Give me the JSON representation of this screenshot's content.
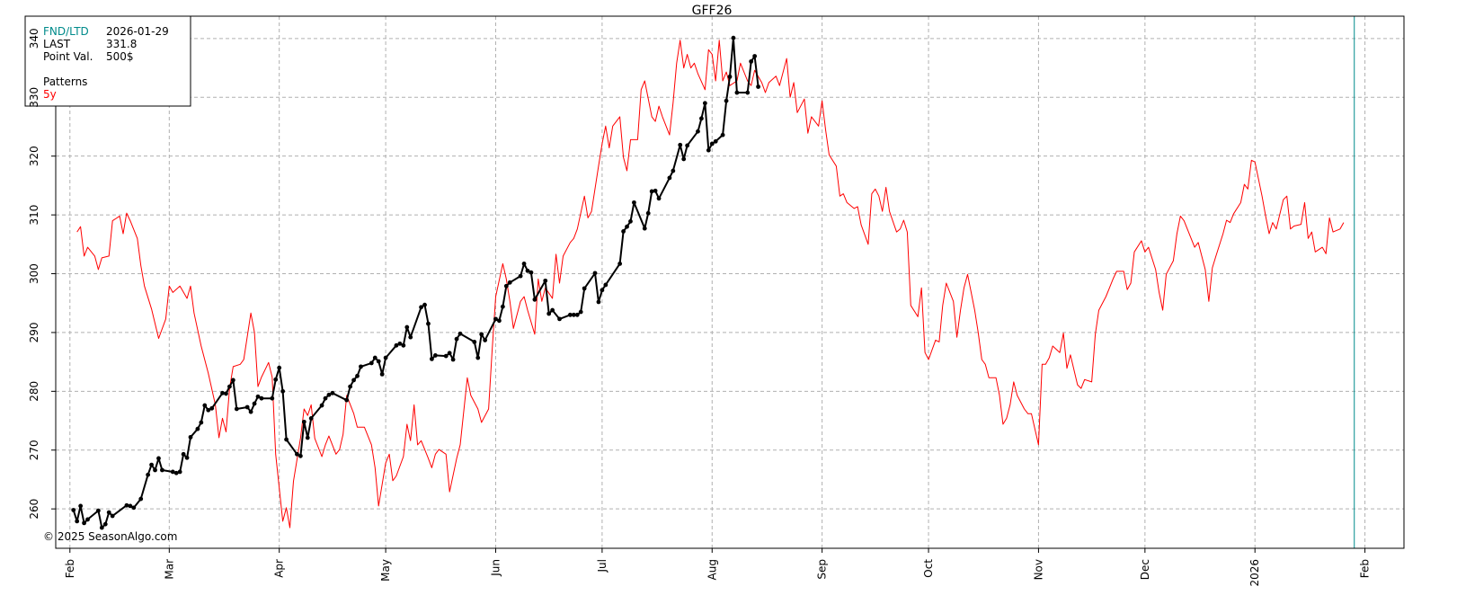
{
  "chart_data": {
    "type": "line",
    "title": "GFF26",
    "xlim": [
      "2025-01-28",
      "2026-02-12"
    ],
    "xticks": [
      {
        "value": "2025-02-01",
        "label": "Feb"
      },
      {
        "value": "2025-03-01",
        "label": "Mar"
      },
      {
        "value": "2025-04-01",
        "label": "Apr"
      },
      {
        "value": "2025-05-01",
        "label": "May"
      },
      {
        "value": "2025-06-01",
        "label": "Jun"
      },
      {
        "value": "2025-07-01",
        "label": "Jul"
      },
      {
        "value": "2025-08-01",
        "label": "Aug"
      },
      {
        "value": "2025-09-01",
        "label": "Sep"
      },
      {
        "value": "2025-10-01",
        "label": "Oct"
      },
      {
        "value": "2025-11-01",
        "label": "Nov"
      },
      {
        "value": "2025-12-01",
        "label": "Dec"
      },
      {
        "value": "2026-01-01",
        "label": "2026"
      },
      {
        "value": "2026-02-01",
        "label": "Feb"
      }
    ],
    "ylim": [
      253.3,
      343.8
    ],
    "yticks": [
      260,
      270,
      280,
      290,
      300,
      310,
      320,
      330,
      340
    ],
    "grid": true,
    "info": {
      "rows": [
        [
          "FND/LTD",
          "2026-01-29"
        ],
        [
          "LAST",
          "331.8"
        ],
        [
          "Point Val.",
          "500$"
        ]
      ],
      "patterns_label": "Patterns",
      "marker_color": "#008b8b"
    },
    "copyright": "© 2025 SeasonAlgo.com",
    "series": [
      {
        "name": "5y",
        "color": "#ff0000",
        "markers": false,
        "x": [
          "2025-02-03",
          "2025-02-04",
          "2025-02-05",
          "2025-02-06",
          "2025-02-08",
          "2025-02-09",
          "2025-02-10",
          "2025-02-12",
          "2025-02-13",
          "2025-02-15",
          "2025-02-16",
          "2025-02-17",
          "2025-02-18",
          "2025-02-20",
          "2025-02-21",
          "2025-02-22",
          "2025-02-24",
          "2025-02-26",
          "2025-02-28",
          "2025-03-01",
          "2025-03-02",
          "2025-03-04",
          "2025-03-06",
          "2025-03-07",
          "2025-03-08",
          "2025-03-10",
          "2025-03-12",
          "2025-03-14",
          "2025-03-15",
          "2025-03-16",
          "2025-03-17",
          "2025-03-18",
          "2025-03-19",
          "2025-03-21",
          "2025-03-22",
          "2025-03-24",
          "2025-03-25",
          "2025-03-26",
          "2025-03-27",
          "2025-03-29",
          "2025-03-30",
          "2025-03-31",
          "2025-04-02",
          "2025-04-03",
          "2025-04-04",
          "2025-04-05",
          "2025-04-07",
          "2025-04-08",
          "2025-04-09",
          "2025-04-10",
          "2025-04-11",
          "2025-04-13",
          "2025-04-14",
          "2025-04-15",
          "2025-04-17",
          "2025-04-18",
          "2025-04-19",
          "2025-04-20",
          "2025-04-22",
          "2025-04-23",
          "2025-04-25",
          "2025-04-27",
          "2025-04-28",
          "2025-04-29",
          "2025-05-01",
          "2025-05-02",
          "2025-05-03",
          "2025-05-04",
          "2025-05-06",
          "2025-05-07",
          "2025-05-08",
          "2025-05-09",
          "2025-05-10",
          "2025-05-11",
          "2025-05-13",
          "2025-05-14",
          "2025-05-15",
          "2025-05-16",
          "2025-05-18",
          "2025-05-19",
          "2025-05-21",
          "2025-05-22",
          "2025-05-24",
          "2025-05-25",
          "2025-05-27",
          "2025-05-28",
          "2025-05-30",
          "2025-05-31",
          "2025-06-01",
          "2025-06-03",
          "2025-06-04",
          "2025-06-05",
          "2025-06-06",
          "2025-06-08",
          "2025-06-09",
          "2025-06-10",
          "2025-06-12",
          "2025-06-13",
          "2025-06-14",
          "2025-06-15",
          "2025-06-17",
          "2025-06-18",
          "2025-06-19",
          "2025-06-20",
          "2025-06-22",
          "2025-06-23",
          "2025-06-24",
          "2025-06-26",
          "2025-06-27",
          "2025-06-28",
          "2025-06-30",
          "2025-07-01",
          "2025-07-02",
          "2025-07-03",
          "2025-07-04",
          "2025-07-06",
          "2025-07-07",
          "2025-07-08",
          "2025-07-09",
          "2025-07-11",
          "2025-07-12",
          "2025-07-13",
          "2025-07-15",
          "2025-07-16",
          "2025-07-17",
          "2025-07-18",
          "2025-07-20",
          "2025-07-21",
          "2025-07-22",
          "2025-07-23",
          "2025-07-24",
          "2025-07-25",
          "2025-07-26",
          "2025-07-27",
          "2025-07-28",
          "2025-07-30",
          "2025-07-31",
          "2025-08-01",
          "2025-08-02",
          "2025-08-03",
          "2025-08-04",
          "2025-08-05",
          "2025-08-06",
          "2025-08-08",
          "2025-08-09",
          "2025-08-11",
          "2025-08-12",
          "2025-08-13",
          "2025-08-15",
          "2025-08-16",
          "2025-08-17",
          "2025-08-19",
          "2025-08-20",
          "2025-08-22",
          "2025-08-23",
          "2025-08-24",
          "2025-08-25",
          "2025-08-27",
          "2025-08-28",
          "2025-08-29",
          "2025-08-31",
          "2025-09-01",
          "2025-09-02",
          "2025-09-03",
          "2025-09-05",
          "2025-09-06",
          "2025-09-07",
          "2025-09-08",
          "2025-09-10",
          "2025-09-11",
          "2025-09-12",
          "2025-09-14",
          "2025-09-15",
          "2025-09-16",
          "2025-09-17",
          "2025-09-18",
          "2025-09-19",
          "2025-09-20",
          "2025-09-22",
          "2025-09-23",
          "2025-09-24",
          "2025-09-25",
          "2025-09-26",
          "2025-09-28",
          "2025-09-29",
          "2025-09-30",
          "2025-10-01",
          "2025-10-03",
          "2025-10-04",
          "2025-10-05",
          "2025-10-06",
          "2025-10-08",
          "2025-10-09",
          "2025-10-10",
          "2025-10-11",
          "2025-10-12",
          "2025-10-14",
          "2025-10-15",
          "2025-10-16",
          "2025-10-17",
          "2025-10-18",
          "2025-10-20",
          "2025-10-21",
          "2025-10-22",
          "2025-10-23",
          "2025-10-24",
          "2025-10-25",
          "2025-10-26",
          "2025-10-28",
          "2025-10-29",
          "2025-10-30",
          "2025-11-01",
          "2025-11-02",
          "2025-11-03",
          "2025-11-04",
          "2025-11-05",
          "2025-11-07",
          "2025-11-08",
          "2025-11-09",
          "2025-11-10",
          "2025-11-12",
          "2025-11-13",
          "2025-11-14",
          "2025-11-16",
          "2025-11-17",
          "2025-11-18",
          "2025-11-20",
          "2025-11-21",
          "2025-11-22",
          "2025-11-23",
          "2025-11-25",
          "2025-11-26",
          "2025-11-27",
          "2025-11-28",
          "2025-11-30",
          "2025-12-01",
          "2025-12-02",
          "2025-12-04",
          "2025-12-05",
          "2025-12-06",
          "2025-12-07",
          "2025-12-09",
          "2025-12-10",
          "2025-12-11",
          "2025-12-12",
          "2025-12-14",
          "2025-12-15",
          "2025-12-16",
          "2025-12-18",
          "2025-12-19",
          "2025-12-20",
          "2025-12-21",
          "2025-12-23",
          "2025-12-24",
          "2025-12-25",
          "2025-12-26",
          "2025-12-28",
          "2025-12-29",
          "2025-12-30",
          "2025-12-31",
          "2026-01-01",
          "2026-01-03",
          "2026-01-04",
          "2026-01-05",
          "2026-01-06",
          "2026-01-07",
          "2026-01-09",
          "2026-01-10",
          "2026-01-11",
          "2026-01-12",
          "2026-01-14",
          "2026-01-15",
          "2026-01-16",
          "2026-01-17",
          "2026-01-18",
          "2026-01-20",
          "2026-01-21",
          "2026-01-22",
          "2026-01-23",
          "2026-01-25",
          "2026-01-26"
        ],
        "values": [
          307.1,
          308,
          303,
          304.5,
          303,
          300.7,
          302.7,
          303,
          309,
          309.8,
          306.8,
          310.3,
          309,
          306,
          301.4,
          297.9,
          294,
          289,
          292.3,
          297.9,
          296.8,
          297.9,
          295.8,
          297.9,
          293.3,
          287.7,
          283.1,
          277.7,
          272.1,
          275.4,
          273.1,
          280.5,
          284.2,
          284.6,
          285.4,
          293.3,
          290,
          280.8,
          282.4,
          284.9,
          282.4,
          269.3,
          257.9,
          260.2,
          256.8,
          264.7,
          272.1,
          277,
          275.9,
          277.7,
          272,
          268.9,
          270.9,
          272.4,
          269.3,
          270.1,
          272.7,
          279.3,
          276.2,
          273.9,
          273.9,
          270.9,
          267,
          260.5,
          267.8,
          269.3,
          264.8,
          265.6,
          268.9,
          274.4,
          271.6,
          277.7,
          270.9,
          271.6,
          268.6,
          267,
          269.3,
          270.1,
          269.3,
          262.9,
          268.6,
          270.9,
          282.3,
          279.3,
          277,
          274.7,
          277,
          286.9,
          296.1,
          301.7,
          299.1,
          295.3,
          290.7,
          295.3,
          296.1,
          293.8,
          289.7,
          299.1,
          295.3,
          297.6,
          295.8,
          303.3,
          298.4,
          303,
          305.3,
          306,
          307.6,
          313.2,
          309.5,
          310.6,
          318.3,
          322.1,
          325.1,
          321.4,
          325.1,
          326.7,
          319.8,
          317.5,
          322.8,
          322.8,
          331.3,
          332.8,
          326.7,
          325.9,
          328.5,
          326.7,
          323.6,
          329,
          335.8,
          339.7,
          335,
          337.3,
          335,
          335.8,
          334,
          331.3,
          338.1,
          337.3,
          332.8,
          339.7,
          332.8,
          334.3,
          332,
          332.8,
          335.8,
          332.8,
          332,
          334.6,
          332.5,
          330.8,
          332.5,
          333.6,
          332,
          336.6,
          330,
          332.5,
          327.4,
          329.7,
          323.9,
          326.7,
          325.1,
          329.4,
          324.4,
          320.2,
          318.3,
          313.2,
          313.6,
          312.1,
          311.1,
          311.4,
          308.3,
          305,
          313.6,
          314.4,
          313.2,
          310.6,
          314.7,
          310.6,
          307.1,
          307.6,
          309.1,
          307.1,
          294.6,
          292.7,
          297.6,
          286.6,
          285.4,
          288.7,
          288.4,
          294.6,
          298.4,
          295.3,
          289.2,
          293.8,
          297.6,
          299.9,
          293.8,
          290,
          285.4,
          284.6,
          282.3,
          282.3,
          279.3,
          274.4,
          275.4,
          277.7,
          281.6,
          279.3,
          277,
          276.2,
          276.2,
          270.9,
          284.6,
          284.6,
          285.7,
          287.7,
          286.6,
          289.9,
          283.9,
          286.2,
          281.1,
          280.5,
          282,
          281.6,
          289.7,
          293.8,
          296.1,
          297.6,
          299.1,
          300.4,
          300.4,
          297.3,
          298.4,
          303.7,
          305.6,
          303.7,
          304.5,
          300.7,
          296.8,
          293.8,
          299.9,
          302.2,
          306.8,
          309.8,
          309,
          306,
          304.5,
          305.3,
          300.7,
          295.3,
          301,
          303,
          306.8,
          309.1,
          308.7,
          310.2,
          312.1,
          315.2,
          314.4,
          319.3,
          319,
          313.2,
          309.8,
          306.8,
          308.7,
          307.6,
          312.6,
          313.2,
          307.6,
          308.1,
          308.4,
          312.1,
          306,
          307.1,
          303.7,
          304.5,
          303.4,
          309.5,
          307.1,
          307.6,
          308.7
        ]
      },
      {
        "color": "#000000",
        "markers": true,
        "x": [
          "2025-02-02",
          "2025-02-03",
          "2025-02-04",
          "2025-02-05",
          "2025-02-06",
          "2025-02-09",
          "2025-02-10",
          "2025-02-11",
          "2025-02-12",
          "2025-02-13",
          "2025-02-17",
          "2025-02-18",
          "2025-02-19",
          "2025-02-21",
          "2025-02-23",
          "2025-02-24",
          "2025-02-25",
          "2025-02-26",
          "2025-02-27",
          "2025-03-02",
          "2025-03-03",
          "2025-03-04",
          "2025-03-05",
          "2025-03-06",
          "2025-03-07",
          "2025-03-09",
          "2025-03-10",
          "2025-03-11",
          "2025-03-12",
          "2025-03-13",
          "2025-03-16",
          "2025-03-17",
          "2025-03-18",
          "2025-03-19",
          "2025-03-20",
          "2025-03-23",
          "2025-03-24",
          "2025-03-25",
          "2025-03-26",
          "2025-03-27",
          "2025-03-30",
          "2025-03-31",
          "2025-04-01",
          "2025-04-02",
          "2025-04-03",
          "2025-04-06",
          "2025-04-07",
          "2025-04-08",
          "2025-04-09",
          "2025-04-10",
          "2025-04-13",
          "2025-04-14",
          "2025-04-15",
          "2025-04-16",
          "2025-04-20",
          "2025-04-21",
          "2025-04-22",
          "2025-04-23",
          "2025-04-24",
          "2025-04-27",
          "2025-04-28",
          "2025-04-29",
          "2025-04-30",
          "2025-05-01",
          "2025-05-04",
          "2025-05-05",
          "2025-05-06",
          "2025-05-07",
          "2025-05-08",
          "2025-05-11",
          "2025-05-12",
          "2025-05-13",
          "2025-05-14",
          "2025-05-15",
          "2025-05-18",
          "2025-05-19",
          "2025-05-20",
          "2025-05-21",
          "2025-05-22",
          "2025-05-26",
          "2025-05-27",
          "2025-05-28",
          "2025-05-29",
          "2025-06-01",
          "2025-06-02",
          "2025-06-03",
          "2025-06-04",
          "2025-06-05",
          "2025-06-08",
          "2025-06-09",
          "2025-06-10",
          "2025-06-11",
          "2025-06-12",
          "2025-06-15",
          "2025-06-16",
          "2025-06-17",
          "2025-06-19",
          "2025-06-22",
          "2025-06-23",
          "2025-06-24",
          "2025-06-25",
          "2025-06-26",
          "2025-06-29",
          "2025-06-30",
          "2025-07-01",
          "2025-07-02",
          "2025-07-06",
          "2025-07-07",
          "2025-07-08",
          "2025-07-09",
          "2025-07-10",
          "2025-07-13",
          "2025-07-14",
          "2025-07-15",
          "2025-07-16",
          "2025-07-17",
          "2025-07-20",
          "2025-07-21",
          "2025-07-23",
          "2025-07-24",
          "2025-07-25",
          "2025-07-28",
          "2025-07-29",
          "2025-07-30",
          "2025-07-31",
          "2025-08-01",
          "2025-08-02",
          "2025-08-04",
          "2025-08-05",
          "2025-08-06",
          "2025-08-07",
          "2025-08-08",
          "2025-08-11",
          "2025-08-12",
          "2025-08-13",
          "2025-08-14"
        ],
        "values": [
          259.8,
          257.9,
          260.5,
          257.6,
          258.2,
          259.7,
          256.8,
          257.4,
          259.4,
          258.8,
          260.6,
          260.5,
          260.2,
          261.7,
          265.8,
          267.5,
          266.6,
          268.6,
          266.6,
          266.3,
          266.1,
          266.3,
          269.3,
          268.7,
          272.2,
          273.6,
          274.7,
          277.6,
          276.8,
          277.1,
          279.7,
          279.6,
          280.8,
          281.9,
          277,
          277.3,
          276.5,
          277.9,
          279.1,
          278.8,
          278.8,
          282,
          284,
          280,
          271.8,
          269.3,
          269,
          274.8,
          272.1,
          275.4,
          277.6,
          278.8,
          279.4,
          279.7,
          278.5,
          280.8,
          281.9,
          282.6,
          284.2,
          284.8,
          285.7,
          285.1,
          282.9,
          285.7,
          287.8,
          288.1,
          287.8,
          290.9,
          289.2,
          294.3,
          294.7,
          291.5,
          285.5,
          286.1,
          286,
          286.5,
          285.4,
          288.9,
          289.8,
          288.4,
          285.7,
          289.7,
          288.7,
          292.3,
          292,
          294.4,
          297.9,
          298.5,
          299.6,
          301.7,
          300.5,
          300.2,
          295.6,
          298.8,
          293.2,
          293.8,
          292.3,
          293,
          293,
          293,
          293.5,
          297.5,
          300.1,
          295.2,
          297.2,
          298.1,
          301.7,
          307.2,
          308,
          308.9,
          312.1,
          307.7,
          310.3,
          314,
          314.1,
          312.8,
          316.3,
          317.5,
          321.9,
          319.5,
          321.8,
          324.2,
          326.4,
          329,
          321,
          322.1,
          322.5,
          323.6,
          329.4,
          333.5,
          340.1,
          330.8,
          330.8,
          336.1,
          337,
          331.8
        ]
      }
    ]
  }
}
